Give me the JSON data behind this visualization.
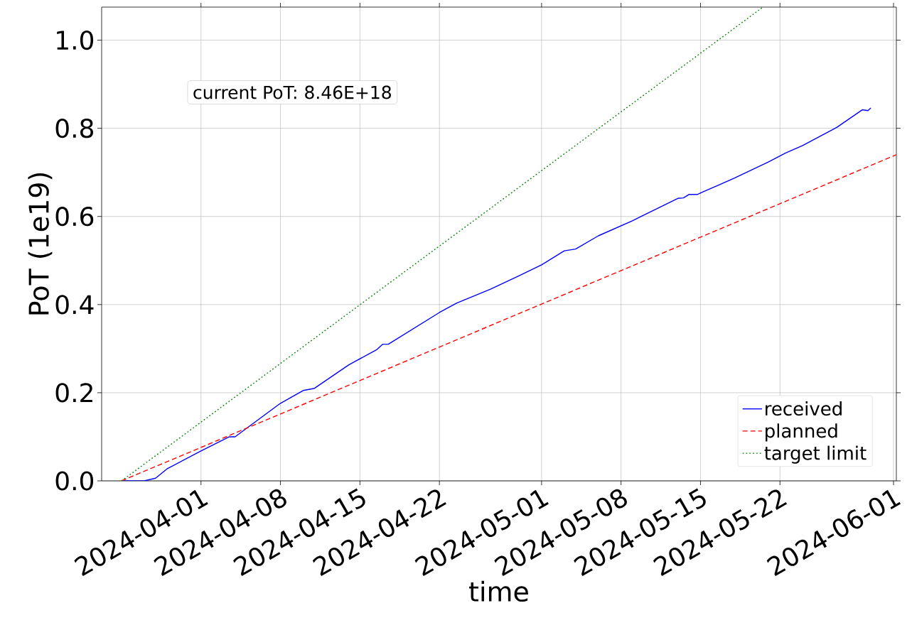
{
  "chart_data": {
    "type": "line",
    "xlabel": "time",
    "ylabel": "PoT (1e19)",
    "annotations": [
      "current PoT:  8.46E+18"
    ],
    "xlim": [
      "2024-03-23T06:00",
      "2024-06-01T06:00"
    ],
    "xticks": [
      "2024-04-01",
      "2024-04-08",
      "2024-04-15",
      "2024-04-22",
      "2024-05-01",
      "2024-05-08",
      "2024-05-15",
      "2024-05-22",
      "2024-06-01"
    ],
    "ylim": [
      0,
      1.075
    ],
    "yticks": [
      {
        "value": 0,
        "label": "0.0"
      },
      0.2,
      0.4,
      0.6,
      0.8,
      {
        "value": 1,
        "label": "1.0"
      }
    ],
    "grid": true,
    "legend": "bottom right",
    "series": [
      {
        "name": "received",
        "color": "#0000ff",
        "line_style": "solid",
        "x": [
          "2024-03-25",
          "2024-03-27",
          "2024-03-28",
          "2024-03-29",
          "2024-04-01",
          "2024-04-03T12:00",
          "2024-04-04",
          "2024-04-08",
          "2024-04-10",
          "2024-04-11",
          "2024-04-14",
          "2024-04-16T12:00",
          "2024-04-17",
          "2024-04-17T12:00",
          "2024-04-22",
          "2024-04-23T12:00",
          "2024-04-26T12:00",
          "2024-04-29",
          "2024-05-01",
          "2024-05-03",
          "2024-05-04",
          "2024-05-06",
          "2024-05-09",
          "2024-05-10",
          "2024-05-13",
          "2024-05-13T12:00",
          "2024-05-14",
          "2024-05-14T18:00",
          "2024-05-15T06:00",
          "2024-05-18",
          "2024-05-21",
          "2024-05-22T12:00",
          "2024-05-24",
          "2024-05-27",
          "2024-05-29T06:00",
          "2024-05-29T18:00",
          "2024-05-30"
        ],
        "values": [
          0,
          0,
          0.006,
          0.027,
          0.068,
          0.1,
          0.1,
          0.176,
          0.205,
          0.21,
          0.263,
          0.298,
          0.31,
          0.31,
          0.382,
          0.403,
          0.435,
          0.465,
          0.49,
          0.522,
          0.526,
          0.556,
          0.59,
          0.603,
          0.641,
          0.642,
          0.65,
          0.65,
          0.656,
          0.687,
          0.724,
          0.744,
          0.761,
          0.802,
          0.842,
          0.84,
          0.846
        ]
      },
      {
        "name": "planned",
        "color": "#ff0000",
        "line_style": "dashed",
        "x": [
          "2024-03-25",
          "2024-06-01T06:00"
        ],
        "values": [
          0,
          0.74
        ]
      },
      {
        "name": "target limit",
        "color": "#008000",
        "line_style": "dotted",
        "x": [
          "2024-03-25",
          "2024-05-20T12:00"
        ],
        "values": [
          0,
          1.075
        ]
      }
    ]
  }
}
